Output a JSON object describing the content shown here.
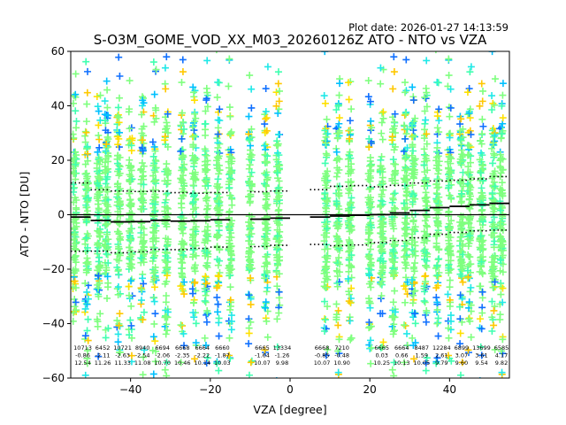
{
  "chart_data": {
    "type": "scatter",
    "plot_date": "Plot date: 2026-01-27 14:13:59",
    "title": "S-O3M_GOME_VOD_XX_M03_20260126Z ATO - NTO vs VZA",
    "xlabel": "VZA [degree]",
    "ylabel": "ATO - NTO [DU]",
    "xlim": [
      -55,
      55
    ],
    "ylim": [
      -60,
      60
    ],
    "xticks": [
      -40,
      -20,
      0,
      20,
      40
    ],
    "yticks": [
      -60,
      -40,
      -20,
      0,
      20,
      40,
      60
    ],
    "zero_line": 0,
    "marker": "+",
    "point_colors": [
      "#7fff7f",
      "#7fff7f",
      "#7fff7f",
      "#7fff7f",
      "#40ffb0",
      "#20e8e8",
      "#ffe000",
      "#ffc800",
      "#00c0ff",
      "#1070ff"
    ],
    "columns_vza": [
      -54,
      -51,
      -48,
      -46,
      -43,
      -40,
      -37,
      -34,
      -31,
      -27,
      -24,
      -21,
      -18,
      -15,
      -10,
      -6,
      -3,
      9,
      12,
      15,
      20,
      23,
      26,
      29,
      31,
      34,
      37,
      40,
      43,
      45,
      48,
      51,
      53
    ],
    "bin_stats": [
      {
        "x": -52,
        "count": "10713",
        "mean": "-0.86",
        "std": "12.54"
      },
      {
        "x": -47,
        "count": "6452",
        "mean": "-2.11",
        "std": "11.26"
      },
      {
        "x": -42,
        "count": "10721",
        "mean": "-2.63",
        "std": "11.33"
      },
      {
        "x": -37,
        "count": "8940",
        "mean": "-2.54",
        "std": "11.08"
      },
      {
        "x": -32,
        "count": "6694",
        "mean": "-2.06",
        "std": "10.70"
      },
      {
        "x": -27,
        "count": "6668",
        "mean": "-2.35",
        "std": "10.46"
      },
      {
        "x": -22,
        "count": "6664",
        "mean": "-2.22",
        "std": "10.14"
      },
      {
        "x": -17,
        "count": "6660",
        "mean": "-1.87",
        "std": "10.03"
      },
      {
        "x": -7,
        "count": "6665",
        "mean": "-1.64",
        "std": "10.07"
      },
      {
        "x": -2,
        "count": "13334",
        "mean": "-1.26",
        "std": "9.98"
      },
      {
        "x": 8,
        "count": "6668",
        "mean": "-0.85",
        "std": "10.07"
      },
      {
        "x": 13,
        "count": "7210",
        "mean": "-0.48",
        "std": "10.90"
      },
      {
        "x": 23,
        "count": "6665",
        "mean": "0.03",
        "std": "10.25"
      },
      {
        "x": 28,
        "count": "6664",
        "mean": "0.66",
        "std": "10.13"
      },
      {
        "x": 33,
        "count": "8487",
        "mean": "1.59",
        "std": "10.05"
      },
      {
        "x": 38,
        "count": "12284",
        "mean": "2.61",
        "std": "9.79"
      },
      {
        "x": 43,
        "count": "6899",
        "mean": "3.07",
        "std": "9.60"
      },
      {
        "x": 48,
        "count": "13699",
        "mean": "3.61",
        "std": "9.54"
      },
      {
        "x": 53,
        "count": "6585",
        "mean": "4.17",
        "std": "9.82"
      }
    ],
    "mean_line": [
      {
        "x0": -55,
        "x1": -50,
        "y": -0.86
      },
      {
        "x0": -50,
        "x1": -45,
        "y": -2.11
      },
      {
        "x0": -45,
        "x1": -40,
        "y": -2.63
      },
      {
        "x0": -40,
        "x1": -35,
        "y": -2.54
      },
      {
        "x0": -35,
        "x1": -30,
        "y": -2.06
      },
      {
        "x0": -30,
        "x1": -25,
        "y": -2.35
      },
      {
        "x0": -25,
        "x1": -20,
        "y": -2.22
      },
      {
        "x0": -20,
        "x1": -15,
        "y": -1.87
      },
      {
        "x0": -10,
        "x1": -5,
        "y": -1.64
      },
      {
        "x0": -5,
        "x1": 0,
        "y": -1.26
      },
      {
        "x0": 5,
        "x1": 10,
        "y": -0.85
      },
      {
        "x0": 10,
        "x1": 15,
        "y": -0.48
      },
      {
        "x0": 15,
        "x1": 20,
        "y": -0.2
      },
      {
        "x0": 20,
        "x1": 25,
        "y": 0.03
      },
      {
        "x0": 25,
        "x1": 30,
        "y": 0.66
      },
      {
        "x0": 30,
        "x1": 35,
        "y": 1.59
      },
      {
        "x0": 35,
        "x1": 40,
        "y": 2.61
      },
      {
        "x0": 40,
        "x1": 45,
        "y": 3.07
      },
      {
        "x0": 45,
        "x1": 50,
        "y": 3.61
      },
      {
        "x0": 50,
        "x1": 55,
        "y": 4.17
      }
    ]
  }
}
